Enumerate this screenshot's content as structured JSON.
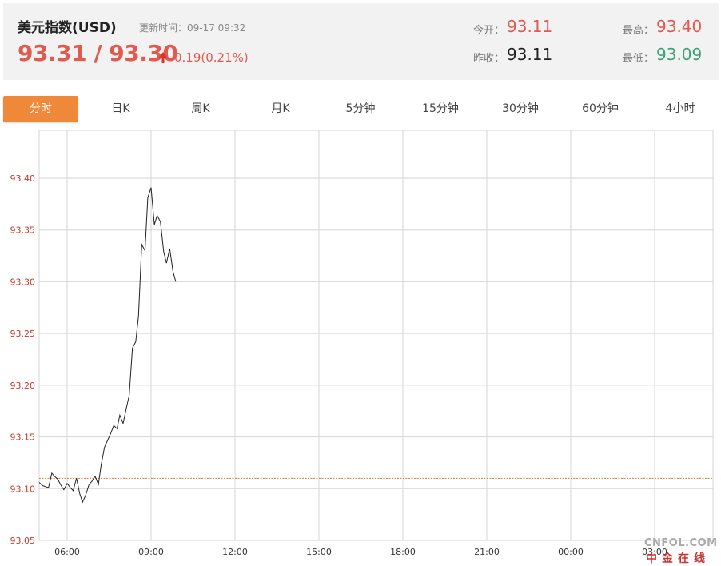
{
  "header": {
    "title": "美元指数(USD)",
    "updated": "更新时间：09-17 09:32",
    "price": "93.31 / 93.30",
    "change": "0.19(0.21%)",
    "open_label": "今开：",
    "open_value": "93.11",
    "prev_close_label": "昨收：",
    "prev_close_value": "93.11",
    "high_label": "最高：",
    "high_value": "93.40",
    "low_label": "最低：",
    "low_value": "93.09",
    "colors": {
      "up": "#e05a50",
      "down": "#3aa37a"
    },
    "arrow_icon": "up-arrow-icon"
  },
  "tabs": [
    {
      "label": "分时",
      "active": true
    },
    {
      "label": "日K",
      "active": false
    },
    {
      "label": "周K",
      "active": false
    },
    {
      "label": "月K",
      "active": false
    },
    {
      "label": "5分钟",
      "active": false
    },
    {
      "label": "15分钟",
      "active": false
    },
    {
      "label": "30分钟",
      "active": false
    },
    {
      "label": "60分钟",
      "active": false
    },
    {
      "label": "4小时",
      "active": false
    }
  ],
  "watermark": {
    "top": "CNFOL.COM",
    "bottom": "中金在线"
  },
  "chart_data": {
    "type": "line",
    "title": "",
    "xlabel": "",
    "ylabel": "",
    "x_ticks": [
      "06:00",
      "09:00",
      "12:00",
      "15:00",
      "18:00",
      "21:00",
      "00:00",
      "03:00"
    ],
    "y_ticks": [
      "93.40",
      "93.35",
      "93.30",
      "93.25",
      "93.20",
      "93.15",
      "93.10",
      "93.05"
    ],
    "ylim": [
      93.05,
      93.4
    ],
    "reference_line": {
      "value": 93.11,
      "label": "昨收"
    },
    "grid": true,
    "series": [
      {
        "points": [
          [
            "05:00",
            93.106
          ],
          [
            "05:07",
            93.103
          ],
          [
            "05:13",
            93.102
          ],
          [
            "05:20",
            93.101
          ],
          [
            "05:27",
            93.115
          ],
          [
            "05:33",
            93.112
          ],
          [
            "05:40",
            93.109
          ],
          [
            "05:47",
            93.103
          ],
          [
            "05:53",
            93.099
          ],
          [
            "06:00",
            93.105
          ],
          [
            "06:07",
            93.101
          ],
          [
            "06:13",
            93.098
          ],
          [
            "06:20",
            93.11
          ],
          [
            "06:27",
            93.095
          ],
          [
            "06:33",
            93.087
          ],
          [
            "06:40",
            93.094
          ],
          [
            "06:47",
            93.104
          ],
          [
            "06:53",
            93.107
          ],
          [
            "07:00",
            93.112
          ],
          [
            "07:07",
            93.104
          ],
          [
            "07:13",
            93.123
          ],
          [
            "07:20",
            93.14
          ],
          [
            "07:27",
            93.147
          ],
          [
            "07:33",
            93.153
          ],
          [
            "07:40",
            93.161
          ],
          [
            "07:47",
            93.158
          ],
          [
            "07:53",
            93.171
          ],
          [
            "08:00",
            93.163
          ],
          [
            "08:07",
            93.178
          ],
          [
            "08:13",
            93.19
          ],
          [
            "08:20",
            93.236
          ],
          [
            "08:27",
            93.242
          ],
          [
            "08:33",
            93.267
          ],
          [
            "08:40",
            93.336
          ],
          [
            "08:47",
            93.33
          ],
          [
            "08:53",
            93.381
          ],
          [
            "09:00",
            93.391
          ],
          [
            "09:07",
            93.355
          ],
          [
            "09:13",
            93.364
          ],
          [
            "09:20",
            93.358
          ],
          [
            "09:27",
            93.329
          ],
          [
            "09:33",
            93.318
          ],
          [
            "09:40",
            93.332
          ],
          [
            "09:47",
            93.31
          ],
          [
            "09:53",
            93.3
          ]
        ]
      }
    ],
    "colors": {
      "line": "#222222",
      "grid": "#d6d6d6",
      "axis_text": "#c0392b",
      "reference_line": "#d87a3a"
    }
  }
}
